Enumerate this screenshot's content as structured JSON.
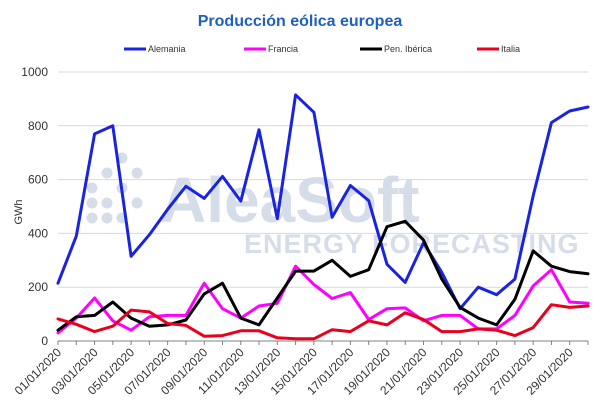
{
  "colors": {
    "title": "#1f5fbf",
    "gridline": "#d9d9d9",
    "axis": "#808080",
    "watermark": "#c7d2e2"
  },
  "watermark": {
    "brand": "AleaSoft",
    "tagline": "ENERGY FORECASTING"
  },
  "chart_data": {
    "type": "line",
    "title": "Producción eólica europea",
    "ylabel": "GWh",
    "xlabel": "",
    "ylim": [
      0,
      1000
    ],
    "yticks": [
      0,
      200,
      400,
      600,
      800,
      1000
    ],
    "grid": true,
    "legend_position": "top",
    "x": [
      "01/01/2020",
      "02/01/2020",
      "03/01/2020",
      "04/01/2020",
      "05/01/2020",
      "06/01/2020",
      "07/01/2020",
      "08/01/2020",
      "09/01/2020",
      "10/01/2020",
      "11/01/2020",
      "12/01/2020",
      "13/01/2020",
      "14/01/2020",
      "15/01/2020",
      "16/01/2020",
      "17/01/2020",
      "18/01/2020",
      "19/01/2020",
      "20/01/2020",
      "21/01/2020",
      "22/01/2020",
      "23/01/2020",
      "24/01/2020",
      "25/01/2020",
      "26/01/2020",
      "27/01/2020",
      "28/01/2020",
      "29/01/2020",
      "30/01/2020"
    ],
    "xtick_labels": [
      "01/01/2020",
      "03/01/2020",
      "05/01/2020",
      "07/01/2020",
      "09/01/2020",
      "11/01/2020",
      "13/01/2020",
      "15/01/2020",
      "17/01/2020",
      "19/01/2020",
      "21/01/2020",
      "23/01/2020",
      "25/01/2020",
      "27/01/2020",
      "29/01/2020"
    ],
    "series": [
      {
        "name": "Alemania",
        "color": "#1a24e0",
        "values": [
          215,
          390,
          770,
          800,
          315,
          395,
          490,
          575,
          530,
          612,
          520,
          785,
          455,
          915,
          850,
          460,
          578,
          522,
          285,
          218,
          365,
          255,
          120,
          200,
          172,
          230,
          540,
          812,
          855,
          870
        ]
      },
      {
        "name": "Francia",
        "color": "#ff00ff",
        "values": [
          30,
          85,
          160,
          75,
          40,
          90,
          95,
          95,
          215,
          120,
          85,
          130,
          140,
          278,
          210,
          158,
          180,
          80,
          120,
          123,
          75,
          95,
          95,
          45,
          45,
          95,
          205,
          265,
          145,
          140
        ]
      },
      {
        "name": "Pen. Ibérica",
        "color": "#000000",
        "values": [
          40,
          90,
          95,
          145,
          85,
          55,
          60,
          78,
          175,
          215,
          85,
          60,
          160,
          260,
          260,
          300,
          240,
          265,
          425,
          445,
          375,
          230,
          125,
          85,
          60,
          155,
          335,
          278,
          258,
          250
        ]
      },
      {
        "name": "Italia",
        "color": "#e8001c",
        "values": [
          82,
          62,
          35,
          55,
          115,
          108,
          65,
          58,
          18,
          20,
          38,
          38,
          12,
          8,
          8,
          42,
          35,
          75,
          60,
          105,
          80,
          35,
          35,
          45,
          40,
          20,
          50,
          135,
          125,
          130
        ]
      }
    ]
  }
}
